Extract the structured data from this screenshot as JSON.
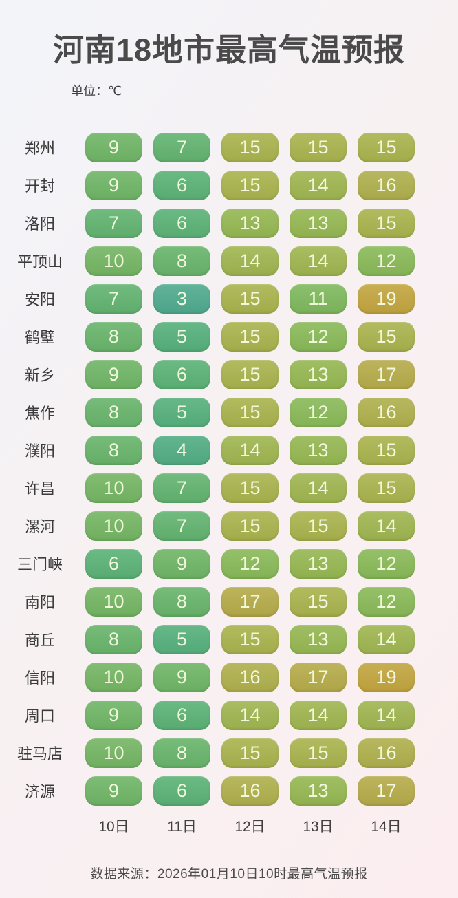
{
  "title": "河南18地市最高气温预报",
  "unit_label": "单位：℃",
  "footer": "数据来源：2026年01月10日10时最高气温预报",
  "colors": {
    "background_start": "#f2f4fa",
    "background_end": "#fceef0",
    "title_text": "#4a4a4a",
    "cell_text": "#f2f8dd",
    "label_text": "#3b3b3b"
  },
  "chart_data": {
    "type": "heatmap",
    "title": "河南18地市最高气温预报",
    "unit": "℃",
    "columns": [
      "10日",
      "11日",
      "12日",
      "13日",
      "14日"
    ],
    "rows": [
      {
        "city": "郑州",
        "values": [
          9,
          7,
          15,
          15,
          15
        ]
      },
      {
        "city": "开封",
        "values": [
          9,
          6,
          15,
          14,
          16
        ]
      },
      {
        "city": "洛阳",
        "values": [
          7,
          6,
          13,
          13,
          15
        ]
      },
      {
        "city": "平顶山",
        "values": [
          10,
          8,
          14,
          14,
          12
        ]
      },
      {
        "city": "安阳",
        "values": [
          7,
          3,
          15,
          11,
          19
        ]
      },
      {
        "city": "鹤壁",
        "values": [
          8,
          5,
          15,
          12,
          15
        ]
      },
      {
        "city": "新乡",
        "values": [
          9,
          6,
          15,
          13,
          17
        ]
      },
      {
        "city": "焦作",
        "values": [
          8,
          5,
          15,
          12,
          16
        ]
      },
      {
        "city": "濮阳",
        "values": [
          8,
          4,
          14,
          13,
          15
        ]
      },
      {
        "city": "许昌",
        "values": [
          10,
          7,
          15,
          14,
          15
        ]
      },
      {
        "city": "漯河",
        "values": [
          10,
          7,
          15,
          15,
          14
        ]
      },
      {
        "city": "三门峡",
        "values": [
          6,
          9,
          12,
          13,
          12
        ]
      },
      {
        "city": "南阳",
        "values": [
          10,
          8,
          17,
          15,
          12
        ]
      },
      {
        "city": "商丘",
        "values": [
          8,
          5,
          15,
          13,
          14
        ]
      },
      {
        "city": "信阳",
        "values": [
          10,
          9,
          16,
          17,
          19
        ]
      },
      {
        "city": "周口",
        "values": [
          9,
          6,
          14,
          14,
          14
        ]
      },
      {
        "city": "驻马店",
        "values": [
          10,
          8,
          15,
          15,
          16
        ]
      },
      {
        "city": "济源",
        "values": [
          9,
          6,
          16,
          13,
          17
        ]
      }
    ],
    "value_range": [
      3,
      19
    ],
    "color_scale": {
      "3": "#4faa8d",
      "4": "#52ad83",
      "5": "#56b07c",
      "6": "#5bb276",
      "7": "#62b370",
      "8": "#68b46b",
      "9": "#6fb566",
      "10": "#74b563",
      "11": "#7eb85d",
      "12": "#89b958",
      "13": "#95b752",
      "14": "#9fb550",
      "15": "#a9b34d",
      "16": "#afaf4d",
      "17": "#b5ab4a",
      "19": "#c2a53f"
    }
  }
}
